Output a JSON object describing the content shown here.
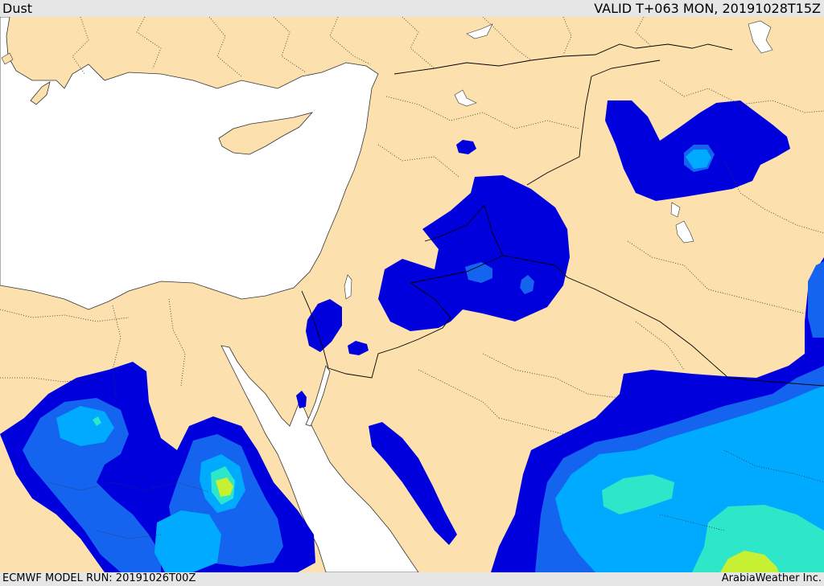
{
  "header": {
    "title": "Dust",
    "valid_time": "VALID T+063 MON, 20191028T15Z"
  },
  "footer": {
    "model_run": "ECMWF MODEL RUN: 20191026T00Z",
    "credit": "ArabiaWeather Inc."
  },
  "colors": {
    "land": "#fce0ad",
    "sea": "#ffffff",
    "dust_level_1": "#0000dc",
    "dust_level_2": "#1464f0",
    "dust_level_3": "#00aaff",
    "dust_level_4": "#2ee6c8",
    "dust_level_5": "#c8f032",
    "borders": "#000000"
  }
}
